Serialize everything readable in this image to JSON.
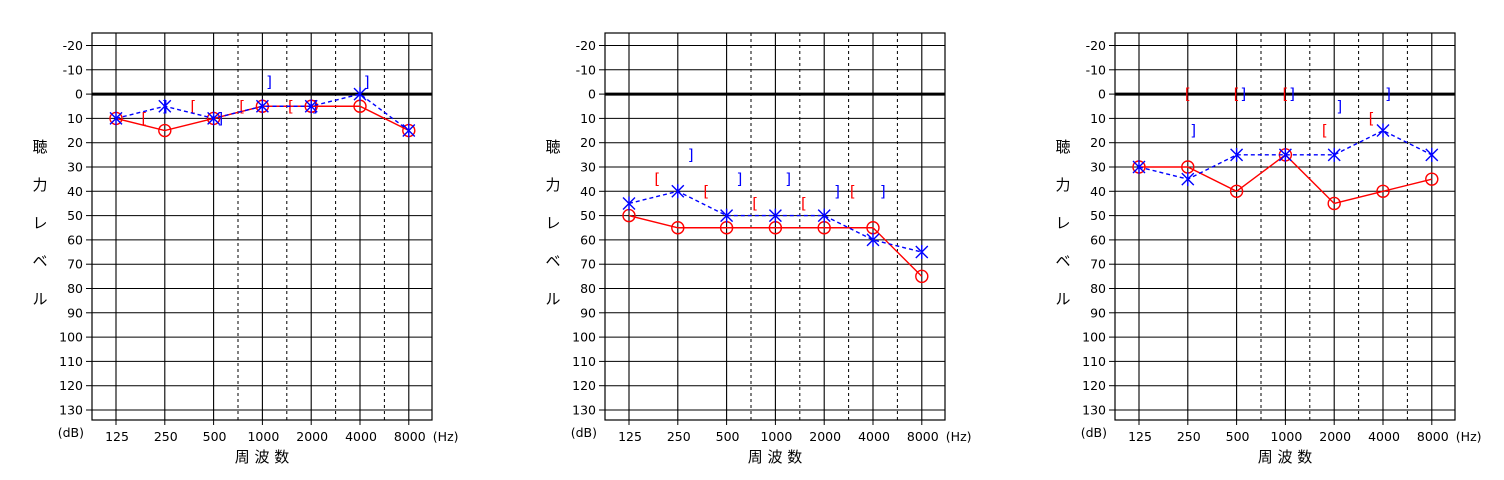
{
  "chart_data": [
    {
      "type": "line",
      "x_ticks": [
        "125",
        "250",
        "500",
        "1000",
        "2000",
        "4000",
        "8000"
      ],
      "x_unit": "(Hz)",
      "x_label": "周 波 数",
      "y_ticks": [
        "-20",
        "-10",
        "0",
        "10",
        "20",
        "30",
        "40",
        "50",
        "60",
        "70",
        "80",
        "90",
        "100",
        "110",
        "120",
        "130"
      ],
      "y_unit": "(dB)",
      "y_label": [
        "聴",
        "力",
        "レ",
        "ベ",
        "ル"
      ],
      "ylim": [
        -20,
        130
      ],
      "series": [
        {
          "marker": "circle",
          "color": "#ff0000",
          "style": "solid",
          "values": [
            10,
            15,
            10,
            5,
            5,
            5,
            15
          ]
        },
        {
          "marker": "cross",
          "color": "#0000ff",
          "style": "dashed",
          "values": [
            10,
            5,
            10,
            5,
            5,
            0,
            15
          ]
        }
      ],
      "bone_right": {
        "marker": "[",
        "color": "#ff0000",
        "points": [
          [
            187,
            10
          ],
          [
            375,
            5
          ],
          [
            750,
            5
          ],
          [
            1500,
            5
          ]
        ]
      },
      "bone_left": {
        "marker": "]",
        "color": "#0000ff",
        "points": [
          [
            250,
            5
          ],
          [
            550,
            10
          ],
          [
            1100,
            -5
          ],
          [
            2100,
            5
          ],
          [
            4400,
            -5
          ]
        ]
      }
    },
    {
      "type": "line",
      "x_ticks": [
        "125",
        "250",
        "500",
        "1000",
        "2000",
        "4000",
        "8000"
      ],
      "x_unit": "(Hz)",
      "x_label": "周 波 数",
      "y_ticks": [
        "-20",
        "-10",
        "0",
        "10",
        "20",
        "30",
        "40",
        "50",
        "60",
        "70",
        "80",
        "90",
        "100",
        "110",
        "120",
        "130"
      ],
      "y_unit": "(dB)",
      "y_label": [
        "聴",
        "力",
        "レ",
        "ベ",
        "ル"
      ],
      "ylim": [
        -20,
        130
      ],
      "series": [
        {
          "marker": "circle",
          "color": "#ff0000",
          "style": "solid",
          "values": [
            50,
            55,
            55,
            55,
            55,
            55,
            75
          ]
        },
        {
          "marker": "cross",
          "color": "#0000ff",
          "style": "dashed",
          "values": [
            45,
            40,
            50,
            50,
            50,
            60,
            65
          ]
        }
      ],
      "bone_right": {
        "marker": "[",
        "color": "#ff0000",
        "points": [
          [
            187,
            35
          ],
          [
            375,
            40
          ],
          [
            750,
            45
          ],
          [
            1500,
            45
          ],
          [
            3000,
            40
          ]
        ]
      },
      "bone_left": {
        "marker": "]",
        "color": "#0000ff",
        "points": [
          [
            300,
            25
          ],
          [
            600,
            35
          ],
          [
            1200,
            35
          ],
          [
            2400,
            40
          ],
          [
            4600,
            40
          ]
        ]
      }
    },
    {
      "type": "line",
      "x_ticks": [
        "125",
        "250",
        "500",
        "1000",
        "2000",
        "4000",
        "8000"
      ],
      "x_unit": "(Hz)",
      "x_label": "周 波 数",
      "y_ticks": [
        "-20",
        "-10",
        "0",
        "10",
        "20",
        "30",
        "40",
        "50",
        "60",
        "70",
        "80",
        "90",
        "100",
        "110",
        "120",
        "130"
      ],
      "y_unit": "(dB)",
      "y_label": [
        "聴",
        "力",
        "レ",
        "ベ",
        "ル"
      ],
      "ylim": [
        -20,
        130
      ],
      "series": [
        {
          "marker": "circle",
          "color": "#ff0000",
          "style": "solid",
          "values": [
            30,
            30,
            40,
            25,
            45,
            40,
            35
          ]
        },
        {
          "marker": "cross",
          "color": "#0000ff",
          "style": "dashed",
          "values": [
            30,
            35,
            25,
            25,
            25,
            15,
            25
          ]
        }
      ],
      "bone_right": {
        "marker": "[",
        "color": "#ff0000",
        "points": [
          [
            250,
            0
          ],
          [
            500,
            0
          ],
          [
            1000,
            0
          ],
          [
            1750,
            15
          ],
          [
            3400,
            10
          ]
        ]
      },
      "bone_left": {
        "marker": "]",
        "color": "#0000ff",
        "points": [
          [
            270,
            15
          ],
          [
            550,
            0
          ],
          [
            1100,
            0
          ],
          [
            2150,
            5
          ],
          [
            4300,
            0
          ]
        ]
      }
    }
  ]
}
